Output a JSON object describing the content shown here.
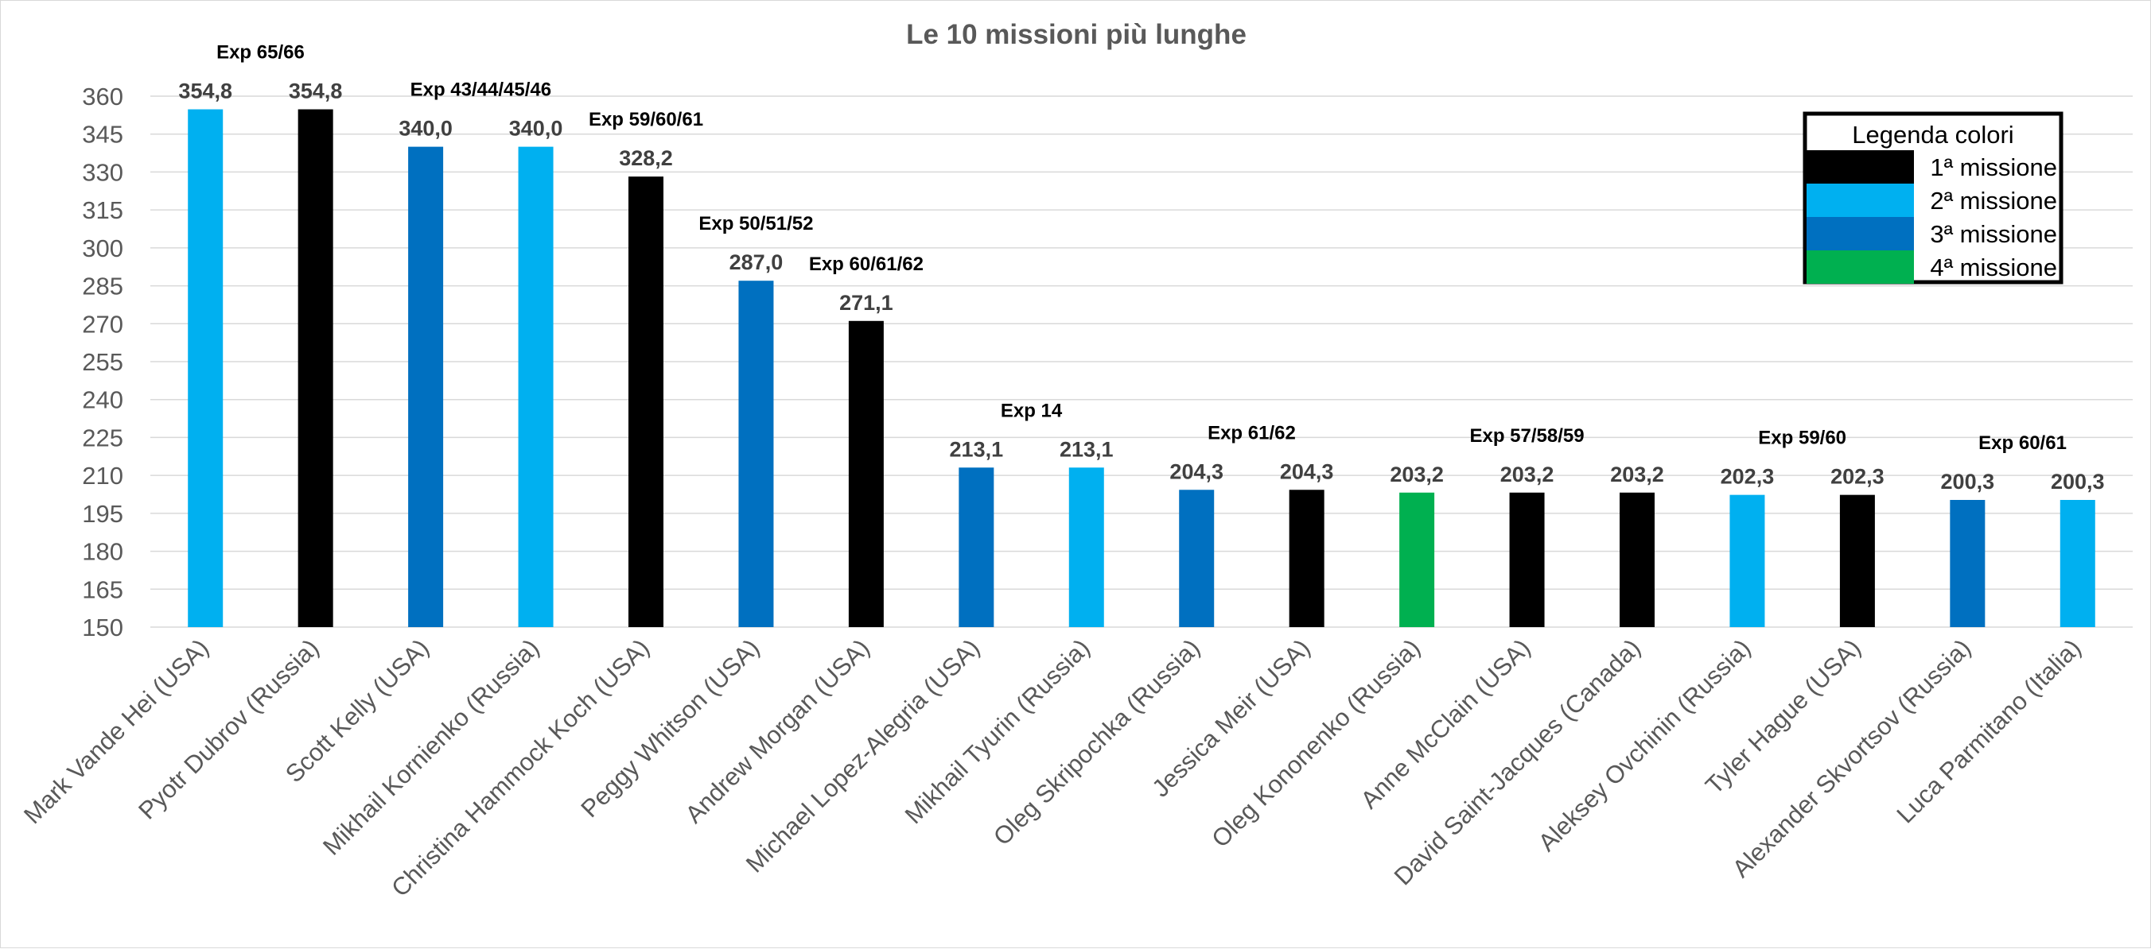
{
  "chart_data": {
    "type": "bar",
    "title": "Le 10 missioni più lunghe",
    "xlabel": "",
    "ylabel": "",
    "ylim": [
      150,
      360
    ],
    "yticks": [
      150,
      165,
      180,
      195,
      210,
      225,
      240,
      255,
      270,
      285,
      300,
      315,
      330,
      345,
      360
    ],
    "grid": true,
    "categories": [
      "Mark Vande Hei (USA)",
      "Pyotr Dubrov (Russia)",
      "Scott Kelly (USA)",
      "Mikhail Kornienko (Russia)",
      "Christina Hammock Koch (USA)",
      "Peggy Whitson (USA)",
      "Andrew Morgan (USA)",
      "Michael Lopez-Alegria (USA)",
      "Mikhail Tyurin (Russia)",
      "Oleg Skripochka (Russia)",
      "Jessica Meir (USA)",
      "Oleg Kononenko (Russia)",
      "Anne McClain (USA)",
      "David Saint-Jacques (Canada)",
      "Aleksey Ovchinin (Russia)",
      "Tyler Hague (USA)",
      "Alexander Skvortsov (Russia)",
      "Luca Parmitano (Italia)"
    ],
    "values": [
      354.8,
      354.8,
      340.0,
      340.0,
      328.2,
      287.0,
      271.1,
      213.1,
      213.1,
      204.3,
      204.3,
      203.2,
      203.2,
      203.2,
      202.3,
      202.3,
      200.3,
      200.3
    ],
    "value_labels": [
      "354,8",
      "354,8",
      "340,0",
      "340,0",
      "328,2",
      "287,0",
      "271,1",
      "213,1",
      "213,1",
      "204,3",
      "204,3",
      "203,2",
      "203,2",
      "203,2",
      "202,3",
      "202,3",
      "200,3",
      "200,3"
    ],
    "mission_number": [
      2,
      1,
      3,
      2,
      1,
      3,
      1,
      3,
      2,
      3,
      1,
      4,
      1,
      1,
      2,
      1,
      3,
      2
    ],
    "annotations": [
      {
        "text": "Exp 65/66",
        "between": [
          0,
          1
        ],
        "value": 354.8
      },
      {
        "text": "Exp 43/44/45/46",
        "between": [
          2,
          3
        ],
        "value": 340.0
      },
      {
        "text": "Exp 59/60/61",
        "between": [
          4,
          4
        ],
        "value": 328.2
      },
      {
        "text": "Exp 50/51/52",
        "between": [
          5,
          5
        ],
        "value": 287.0
      },
      {
        "text": "Exp 60/61/62",
        "between": [
          6,
          6
        ],
        "value": 271.1
      },
      {
        "text": "Exp 14",
        "between": [
          7,
          8
        ],
        "value": 213.1
      },
      {
        "text": "Exp 61/62",
        "between": [
          9,
          10
        ],
        "value": 204.3
      },
      {
        "text": "Exp 57/58/59",
        "between": [
          11,
          13
        ],
        "value": 203.2
      },
      {
        "text": "Exp 59/60",
        "between": [
          14,
          15
        ],
        "value": 202.3
      },
      {
        "text": "Exp 60/61",
        "between": [
          16,
          17
        ],
        "value": 200.3
      }
    ],
    "legend": {
      "title": "Legenda colori",
      "placement": "top-right",
      "entries": [
        {
          "label": "1ª missione",
          "mission": 1,
          "color": "#000000"
        },
        {
          "label": "2ª missione",
          "mission": 2,
          "color": "#00B0F0"
        },
        {
          "label": "3ª missione",
          "mission": 3,
          "color": "#0070C0"
        },
        {
          "label": "4ª missione",
          "mission": 4,
          "color": "#00B050"
        }
      ]
    }
  }
}
